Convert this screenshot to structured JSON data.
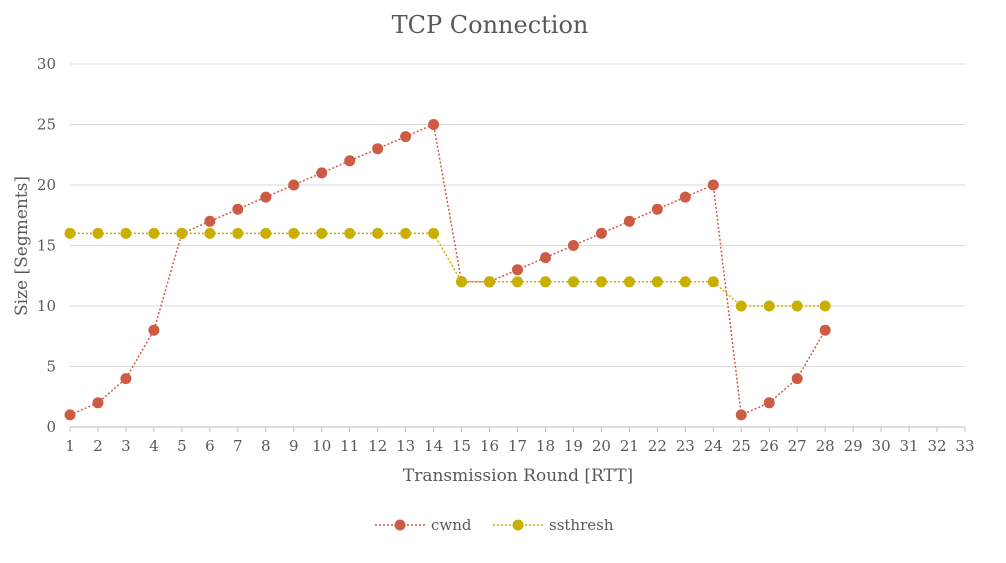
{
  "chart_data": {
    "type": "line",
    "title": "TCP Connection",
    "xlabel": "Transmission Round [RTT]",
    "ylabel": "Size [Segments]",
    "x_categories": [
      "1",
      "2",
      "3",
      "4",
      "5",
      "6",
      "7",
      "8",
      "9",
      "10",
      "11",
      "12",
      "13",
      "14",
      "15",
      "16",
      "17",
      "18",
      "19",
      "20",
      "21",
      "22",
      "23",
      "24",
      "25",
      "26",
      "27",
      "28",
      "29",
      "30",
      "31",
      "32",
      "33"
    ],
    "ylim": [
      0,
      30
    ],
    "yticks": [
      "0",
      "5",
      "10",
      "15",
      "20",
      "25",
      "30"
    ],
    "grid": true,
    "legend_position": "bottom",
    "series": [
      {
        "name": "cwnd",
        "color": "#cd5c45",
        "values": [
          1,
          2,
          4,
          8,
          16,
          17,
          18,
          19,
          20,
          21,
          22,
          23,
          24,
          25,
          12,
          12,
          13,
          14,
          15,
          16,
          17,
          18,
          19,
          20,
          1,
          2,
          4,
          8
        ]
      },
      {
        "name": "ssthresh",
        "color": "#c9b000",
        "values": [
          16,
          16,
          16,
          16,
          16,
          16,
          16,
          16,
          16,
          16,
          16,
          16,
          16,
          16,
          12,
          12,
          12,
          12,
          12,
          12,
          12,
          12,
          12,
          12,
          10,
          10,
          10,
          10
        ]
      }
    ]
  }
}
